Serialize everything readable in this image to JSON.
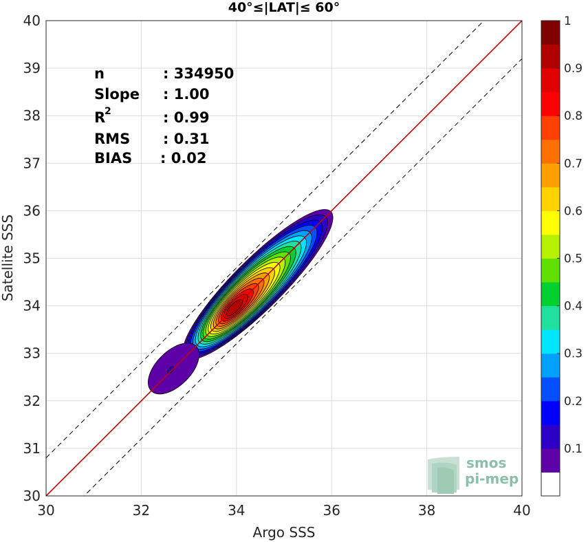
{
  "chart_data": {
    "type": "contour",
    "title": "40°≤|LAT|≤ 60°",
    "xlabel": "Argo SSS",
    "ylabel": "Satellite SSS",
    "xlim": [
      30,
      40
    ],
    "ylim": [
      30,
      40
    ],
    "x_ticks": [
      "30",
      "32",
      "34",
      "36",
      "38",
      "40"
    ],
    "y_ticks": [
      "30",
      "31",
      "32",
      "33",
      "34",
      "35",
      "36",
      "37",
      "38",
      "39",
      "40"
    ],
    "grid": true,
    "stats": {
      "n_label": "n",
      "n_value": ": 334950",
      "slope_label": "Slope",
      "slope_value": ": 1.00",
      "r2_label": "R",
      "r2_sup": "2",
      "r2_value": ": 0.99",
      "rms_label": "RMS",
      "rms_value": ": 0.31",
      "bias_label": "BIAS",
      "bias_value": ": 0.02"
    },
    "reference_lines": [
      {
        "kind": "one-to-one",
        "slope": 1.0,
        "intercept": 0.0,
        "color": "#c00000"
      },
      {
        "kind": "upper-bound",
        "slope": 1.0,
        "intercept": 0.8,
        "style": "dashed"
      },
      {
        "kind": "lower-bound",
        "slope": 1.0,
        "intercept": -0.8,
        "style": "dashed"
      }
    ],
    "density_peaks": [
      {
        "x": 33.9,
        "y": 33.9,
        "relative_density": 1.0
      },
      {
        "x": 32.65,
        "y": 32.65,
        "relative_density": 0.15
      }
    ],
    "colorbar": {
      "range": [
        0,
        1
      ],
      "ticks": [
        "0.1",
        "0.2",
        "0.3",
        "0.4",
        "0.5",
        "0.6",
        "0.7",
        "0.8",
        "0.9",
        "1"
      ],
      "colors": [
        "#ffffff",
        "#5e00a8",
        "#2d00c8",
        "#0000ff",
        "#0050ff",
        "#00a0ff",
        "#00e6ff",
        "#20e0a0",
        "#00d030",
        "#60e000",
        "#b4f000",
        "#ffff00",
        "#ffd200",
        "#ffa000",
        "#ff7000",
        "#ff4000",
        "#ff0000",
        "#e00000",
        "#b00000",
        "#800000"
      ]
    }
  },
  "logo": {
    "line1": "smos",
    "line2": "pi-mep"
  }
}
